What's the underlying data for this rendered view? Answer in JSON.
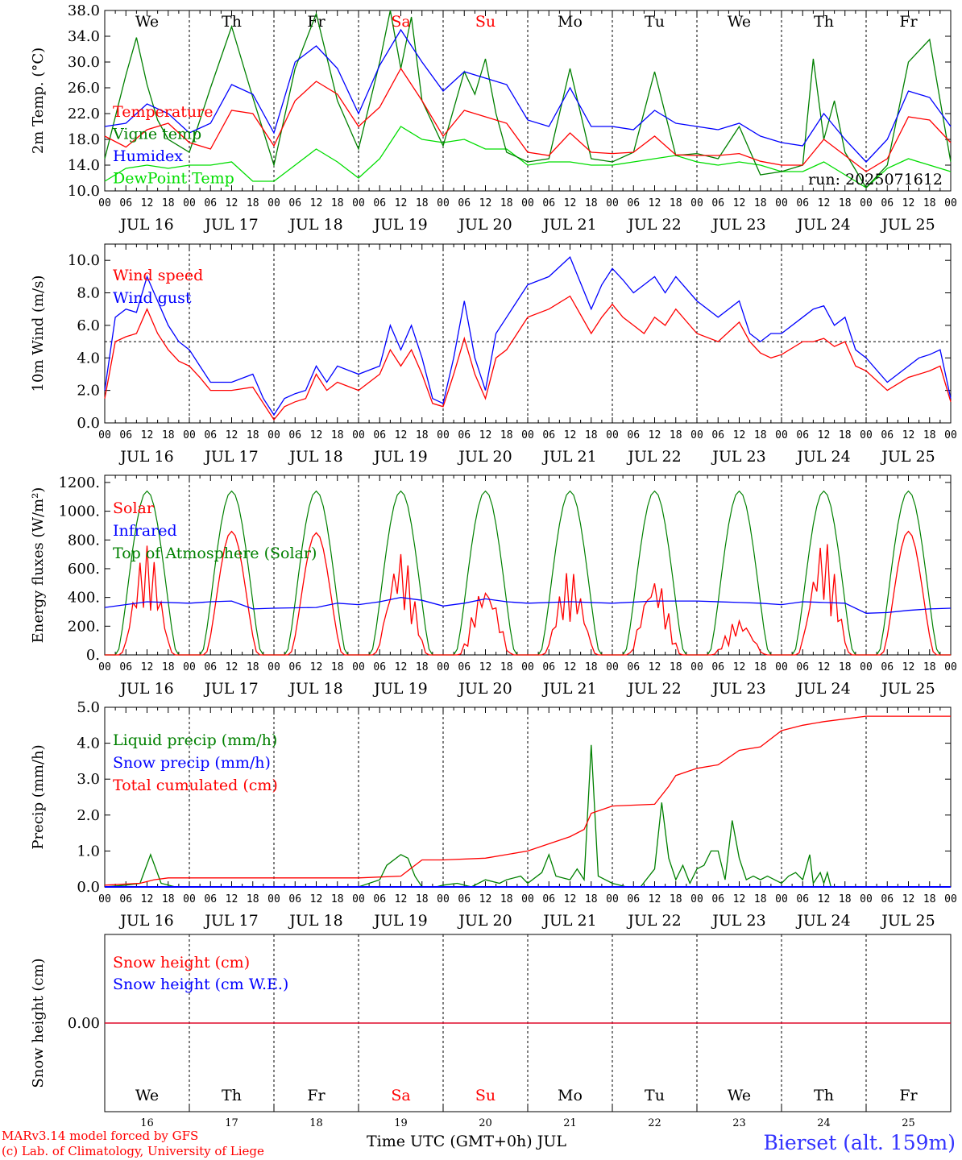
{
  "colors": {
    "red": "#ff0000",
    "green": "#008000",
    "blue": "#0000ff",
    "lightgreen": "#00dd00",
    "axis": "#000000"
  },
  "days": [
    "We",
    "Th",
    "Fr",
    "Sa",
    "Su",
    "Mo",
    "Tu",
    "We",
    "Th",
    "Fr"
  ],
  "weekend_days": [
    "Sa",
    "Su"
  ],
  "date_labels": [
    "JUL 16",
    "JUL 17",
    "JUL 18",
    "JUL 19",
    "JUL 20",
    "JUL 21",
    "JUL 22",
    "JUL 23",
    "JUL 24",
    "JUL 25"
  ],
  "hour_labels": [
    "00",
    "06",
    "12",
    "18"
  ],
  "day_numbers": [
    "16",
    "17",
    "18",
    "19",
    "20",
    "21",
    "22",
    "23",
    "24",
    "25"
  ],
  "run_label": "run: 2025071612",
  "footer": {
    "credit_line1": "MARv3.14 model forced by GFS",
    "credit_line2": "(c) Lab. of Climatology, University of Liege",
    "x_title": "Time UTC (GMT+0h) JUL",
    "station": "Bierset (alt. 159m)"
  },
  "chart_data": [
    {
      "type": "line",
      "ylabel": "2m Temp. (°C)",
      "ylim": [
        10,
        38
      ],
      "yticks": [
        "38.0",
        "34.0",
        "30.0",
        "26.0",
        "22.0",
        "18.0",
        "14.0",
        "10.0"
      ],
      "x_unit": "hours since 2025-07-16 00 UTC",
      "series": [
        {
          "name": "Temperature",
          "color": "#ff0000",
          "x": [
            0,
            6,
            12,
            18,
            24,
            30,
            36,
            42,
            48,
            54,
            60,
            66,
            72,
            78,
            84,
            90,
            96,
            102,
            108,
            114,
            120,
            126,
            132,
            138,
            144,
            150,
            156,
            162,
            168,
            174,
            180,
            186,
            192,
            198,
            204,
            210,
            216,
            222,
            228,
            234,
            240
          ],
          "y": [
            18.5,
            16.8,
            19.5,
            20.5,
            17.5,
            16.5,
            22.5,
            22.0,
            17.0,
            24.0,
            27.0,
            25.0,
            20.0,
            23.0,
            29.0,
            24.0,
            18.5,
            22.5,
            21.5,
            20.5,
            16.0,
            15.5,
            19.0,
            16.0,
            15.8,
            16.0,
            18.5,
            15.6,
            15.5,
            15.5,
            15.8,
            14.6,
            14.0,
            14.0,
            18.0,
            15.5,
            13.0,
            15.0,
            21.5,
            21.0,
            17.5
          ]
        },
        {
          "name": "Vigne temp",
          "color": "#008000",
          "x": [
            0,
            6,
            9,
            12,
            15,
            18,
            24,
            30,
            36,
            42,
            48,
            54,
            60,
            66,
            72,
            78,
            81,
            84,
            87,
            90,
            96,
            102,
            105,
            108,
            111,
            114,
            120,
            126,
            132,
            138,
            144,
            150,
            156,
            162,
            168,
            174,
            180,
            186,
            192,
            198,
            201,
            204,
            207,
            210,
            216,
            222,
            228,
            234,
            240
          ],
          "y": [
            15.0,
            28.0,
            33.8,
            26.5,
            21.0,
            18.0,
            16.0,
            26.0,
            35.5,
            24.5,
            14.0,
            29.0,
            37.5,
            24.0,
            16.5,
            30.0,
            38.0,
            29.0,
            37.0,
            24.0,
            17.0,
            28.5,
            25.0,
            30.5,
            22.0,
            16.0,
            14.5,
            15.0,
            29.0,
            15.0,
            14.5,
            16.0,
            28.5,
            15.5,
            15.8,
            15.0,
            20.0,
            12.5,
            13.0,
            14.0,
            30.5,
            18.0,
            24.0,
            16.0,
            10.5,
            14.0,
            30.0,
            33.5,
            14.5
          ]
        },
        {
          "name": "Humidex",
          "color": "#0000ff",
          "x": [
            0,
            6,
            12,
            18,
            24,
            30,
            36,
            42,
            48,
            54,
            60,
            66,
            72,
            78,
            84,
            90,
            96,
            102,
            108,
            114,
            120,
            126,
            132,
            138,
            144,
            150,
            156,
            162,
            168,
            174,
            180,
            186,
            192,
            198,
            204,
            210,
            216,
            222,
            228,
            234,
            240
          ],
          "y": [
            20.0,
            20.5,
            23.5,
            22.0,
            19.0,
            20.5,
            26.5,
            25.0,
            19.0,
            30.0,
            32.5,
            29.0,
            22.0,
            29.5,
            35.0,
            30.0,
            25.5,
            28.5,
            27.5,
            26.5,
            21.0,
            20.0,
            26.0,
            20.0,
            20.0,
            19.5,
            22.5,
            20.5,
            20.0,
            19.5,
            20.5,
            18.5,
            17.5,
            17.0,
            22.0,
            18.0,
            14.5,
            18.0,
            25.5,
            24.5,
            20.0
          ]
        },
        {
          "name": "DewPoint Temp",
          "color": "#00dd00",
          "x": [
            0,
            6,
            12,
            18,
            24,
            30,
            36,
            42,
            48,
            54,
            60,
            66,
            72,
            78,
            84,
            90,
            96,
            102,
            108,
            114,
            120,
            126,
            132,
            138,
            144,
            150,
            156,
            162,
            168,
            174,
            180,
            186,
            192,
            198,
            204,
            210,
            216,
            222,
            228,
            234,
            240
          ],
          "y": [
            11.5,
            13.5,
            14.0,
            13.5,
            14.0,
            14.0,
            14.5,
            11.5,
            11.5,
            14.0,
            16.5,
            14.5,
            12.0,
            15.0,
            20.0,
            18.0,
            17.5,
            18.0,
            16.5,
            16.5,
            14.0,
            14.5,
            14.5,
            14.0,
            14.0,
            14.5,
            15.0,
            15.5,
            14.5,
            14.0,
            14.5,
            14.0,
            13.0,
            13.0,
            14.5,
            12.5,
            10.5,
            13.5,
            15.0,
            14.0,
            13.0
          ]
        }
      ]
    },
    {
      "type": "line",
      "ylabel": "10m Wind (m/s)",
      "ylim": [
        0,
        11
      ],
      "yticks": [
        "10.0",
        "8.0",
        "6.0",
        "4.0",
        "2.0",
        "0.0"
      ],
      "ref_line": 5.0,
      "series": [
        {
          "name": "Wind speed",
          "color": "#ff0000",
          "x": [
            0,
            3,
            6,
            9,
            12,
            15,
            18,
            21,
            24,
            27,
            30,
            36,
            42,
            45,
            48,
            51,
            54,
            57,
            60,
            63,
            66,
            72,
            78,
            81,
            84,
            87,
            90,
            93,
            96,
            99,
            102,
            105,
            108,
            111,
            114,
            117,
            120,
            126,
            132,
            138,
            141,
            144,
            147,
            150,
            153,
            156,
            159,
            162,
            168,
            174,
            180,
            183,
            186,
            189,
            192,
            198,
            201,
            204,
            207,
            210,
            213,
            216,
            222,
            228,
            231,
            234,
            237,
            240
          ],
          "y": [
            1.5,
            5.0,
            5.3,
            5.5,
            7.0,
            5.5,
            4.5,
            3.8,
            3.5,
            2.8,
            2.0,
            2.0,
            2.2,
            1.2,
            0.2,
            1.0,
            1.3,
            1.5,
            3.0,
            2.0,
            2.5,
            2.0,
            3.0,
            4.5,
            3.5,
            4.5,
            3.0,
            1.2,
            1.0,
            3.0,
            5.2,
            3.0,
            1.5,
            4.0,
            4.5,
            5.5,
            6.5,
            7.0,
            7.8,
            5.5,
            6.5,
            7.3,
            6.5,
            6.0,
            5.5,
            6.5,
            6.0,
            7.0,
            5.5,
            5.0,
            6.2,
            5.0,
            4.3,
            4.0,
            4.2,
            5.0,
            5.0,
            5.2,
            4.7,
            5.0,
            3.5,
            3.2,
            2.0,
            2.8,
            3.0,
            3.2,
            3.5,
            1.3
          ]
        },
        {
          "name": "Wind gust",
          "color": "#0000ff",
          "x": [
            0,
            3,
            6,
            9,
            12,
            15,
            18,
            21,
            24,
            27,
            30,
            36,
            42,
            45,
            48,
            51,
            54,
            57,
            60,
            63,
            66,
            72,
            78,
            81,
            84,
            87,
            90,
            93,
            96,
            99,
            102,
            105,
            108,
            111,
            114,
            117,
            120,
            126,
            132,
            138,
            141,
            144,
            147,
            150,
            153,
            156,
            159,
            162,
            168,
            174,
            180,
            183,
            186,
            189,
            192,
            198,
            201,
            204,
            207,
            210,
            213,
            216,
            222,
            228,
            231,
            234,
            237,
            240
          ],
          "y": [
            2.0,
            6.5,
            7.0,
            6.8,
            9.0,
            7.5,
            6.0,
            5.0,
            4.5,
            3.5,
            2.5,
            2.5,
            3.0,
            1.5,
            0.5,
            1.5,
            1.8,
            2.0,
            3.5,
            2.5,
            3.5,
            3.0,
            3.5,
            6.0,
            4.5,
            6.0,
            4.0,
            1.5,
            1.2,
            4.0,
            7.5,
            4.0,
            2.0,
            5.5,
            6.5,
            7.5,
            8.5,
            9.0,
            10.2,
            7.0,
            8.5,
            9.5,
            8.8,
            8.0,
            8.5,
            9.0,
            8.0,
            9.0,
            7.5,
            6.5,
            7.5,
            5.5,
            5.0,
            5.5,
            5.5,
            6.5,
            7.0,
            7.2,
            6.0,
            6.5,
            4.5,
            4.0,
            2.5,
            3.5,
            4.0,
            4.2,
            4.5,
            1.5
          ]
        }
      ]
    },
    {
      "type": "line",
      "ylabel": "Energy fluxes (W/m²)",
      "ylim": [
        0,
        1250
      ],
      "yticks": [
        "1200.",
        "1000.",
        "800.",
        "600.",
        "400.",
        "200.",
        "0."
      ],
      "series": [
        {
          "name": "Solar",
          "color": "#ff0000",
          "daily_peaks": [
            760,
            860,
            850,
            720,
            500,
            590,
            550,
            250,
            800,
            860
          ]
        },
        {
          "name": "Infrared",
          "color": "#0000ff",
          "x": [
            0,
            12,
            24,
            30,
            36,
            42,
            48,
            60,
            66,
            72,
            78,
            84,
            90,
            96,
            102,
            108,
            114,
            120,
            132,
            144,
            156,
            168,
            180,
            186,
            192,
            198,
            204,
            210,
            216,
            222,
            228,
            234,
            240
          ],
          "y": [
            330,
            370,
            360,
            370,
            375,
            320,
            325,
            330,
            360,
            350,
            370,
            400,
            380,
            340,
            360,
            390,
            370,
            360,
            370,
            360,
            375,
            375,
            365,
            360,
            350,
            370,
            365,
            360,
            290,
            295,
            310,
            320,
            325
          ]
        },
        {
          "name": "Top of Atmosphere (Solar)",
          "color": "#008000",
          "daily_peak": 1140
        }
      ]
    },
    {
      "type": "line",
      "ylabel": "Precip (mm/h)",
      "ylim": [
        0,
        5
      ],
      "yticks": [
        "5.0",
        "4.0",
        "3.0",
        "2.0",
        "1.0",
        "0.0"
      ],
      "series": [
        {
          "name": "Liquid precip (mm/h)",
          "color": "#008000",
          "x": [
            0,
            6,
            10,
            13,
            16,
            20,
            24,
            72,
            78,
            80,
            84,
            86,
            88,
            90,
            94,
            96,
            100,
            104,
            108,
            112,
            114,
            118,
            120,
            124,
            126,
            128,
            132,
            134,
            136,
            138,
            140,
            142,
            144,
            148,
            152,
            156,
            158,
            160,
            162,
            164,
            166,
            168,
            170,
            172,
            174,
            176,
            178,
            180,
            182,
            184,
            186,
            188,
            192,
            194,
            196,
            198,
            200,
            201,
            203,
            204,
            205,
            206,
            210,
            240
          ],
          "y": [
            0,
            0.05,
            0.1,
            0.9,
            0.1,
            0,
            0,
            0,
            0.2,
            0.6,
            0.9,
            0.8,
            0.3,
            0,
            0,
            0.05,
            0.1,
            0,
            0.2,
            0.1,
            0.2,
            0.3,
            0.1,
            0.4,
            0.9,
            0.3,
            0.2,
            0.5,
            0.2,
            3.95,
            0.3,
            0.2,
            0.1,
            0.0,
            0.0,
            0.5,
            2.35,
            0.8,
            0.2,
            0.6,
            0.1,
            0.5,
            0.6,
            1.0,
            1.0,
            0.2,
            1.85,
            0.8,
            0.2,
            0.3,
            0.2,
            0.3,
            0.1,
            0.3,
            0.4,
            0.2,
            0.9,
            0.1,
            0.4,
            0.1,
            0.4,
            0,
            0,
            0
          ]
        },
        {
          "name": "Snow precip (mm/h)",
          "color": "#0000ff",
          "x": [
            0,
            240
          ],
          "y": [
            0,
            0
          ]
        },
        {
          "name": "Total cumulated (cm)",
          "color": "#ff0000",
          "x": [
            0,
            10,
            14,
            18,
            24,
            72,
            84,
            90,
            96,
            108,
            120,
            132,
            136,
            138,
            144,
            156,
            160,
            162,
            168,
            174,
            180,
            186,
            192,
            198,
            204,
            216,
            240
          ],
          "y": [
            0.05,
            0.1,
            0.2,
            0.25,
            0.25,
            0.25,
            0.3,
            0.75,
            0.75,
            0.8,
            1.0,
            1.4,
            1.6,
            2.05,
            2.25,
            2.3,
            2.8,
            3.1,
            3.3,
            3.4,
            3.8,
            3.9,
            4.35,
            4.5,
            4.6,
            4.75,
            4.75
          ]
        }
      ]
    },
    {
      "type": "line",
      "ylabel": "Snow height (cm)",
      "yticks": [
        "0.00"
      ],
      "series": [
        {
          "name": "Snow height (cm)",
          "color": "#ff0000",
          "x": [
            0,
            240
          ],
          "y": [
            0,
            0
          ]
        },
        {
          "name": "Snow height (cm W.E.)",
          "color": "#0000ff",
          "x": [
            0,
            240
          ],
          "y": [
            0,
            0
          ]
        }
      ]
    }
  ]
}
